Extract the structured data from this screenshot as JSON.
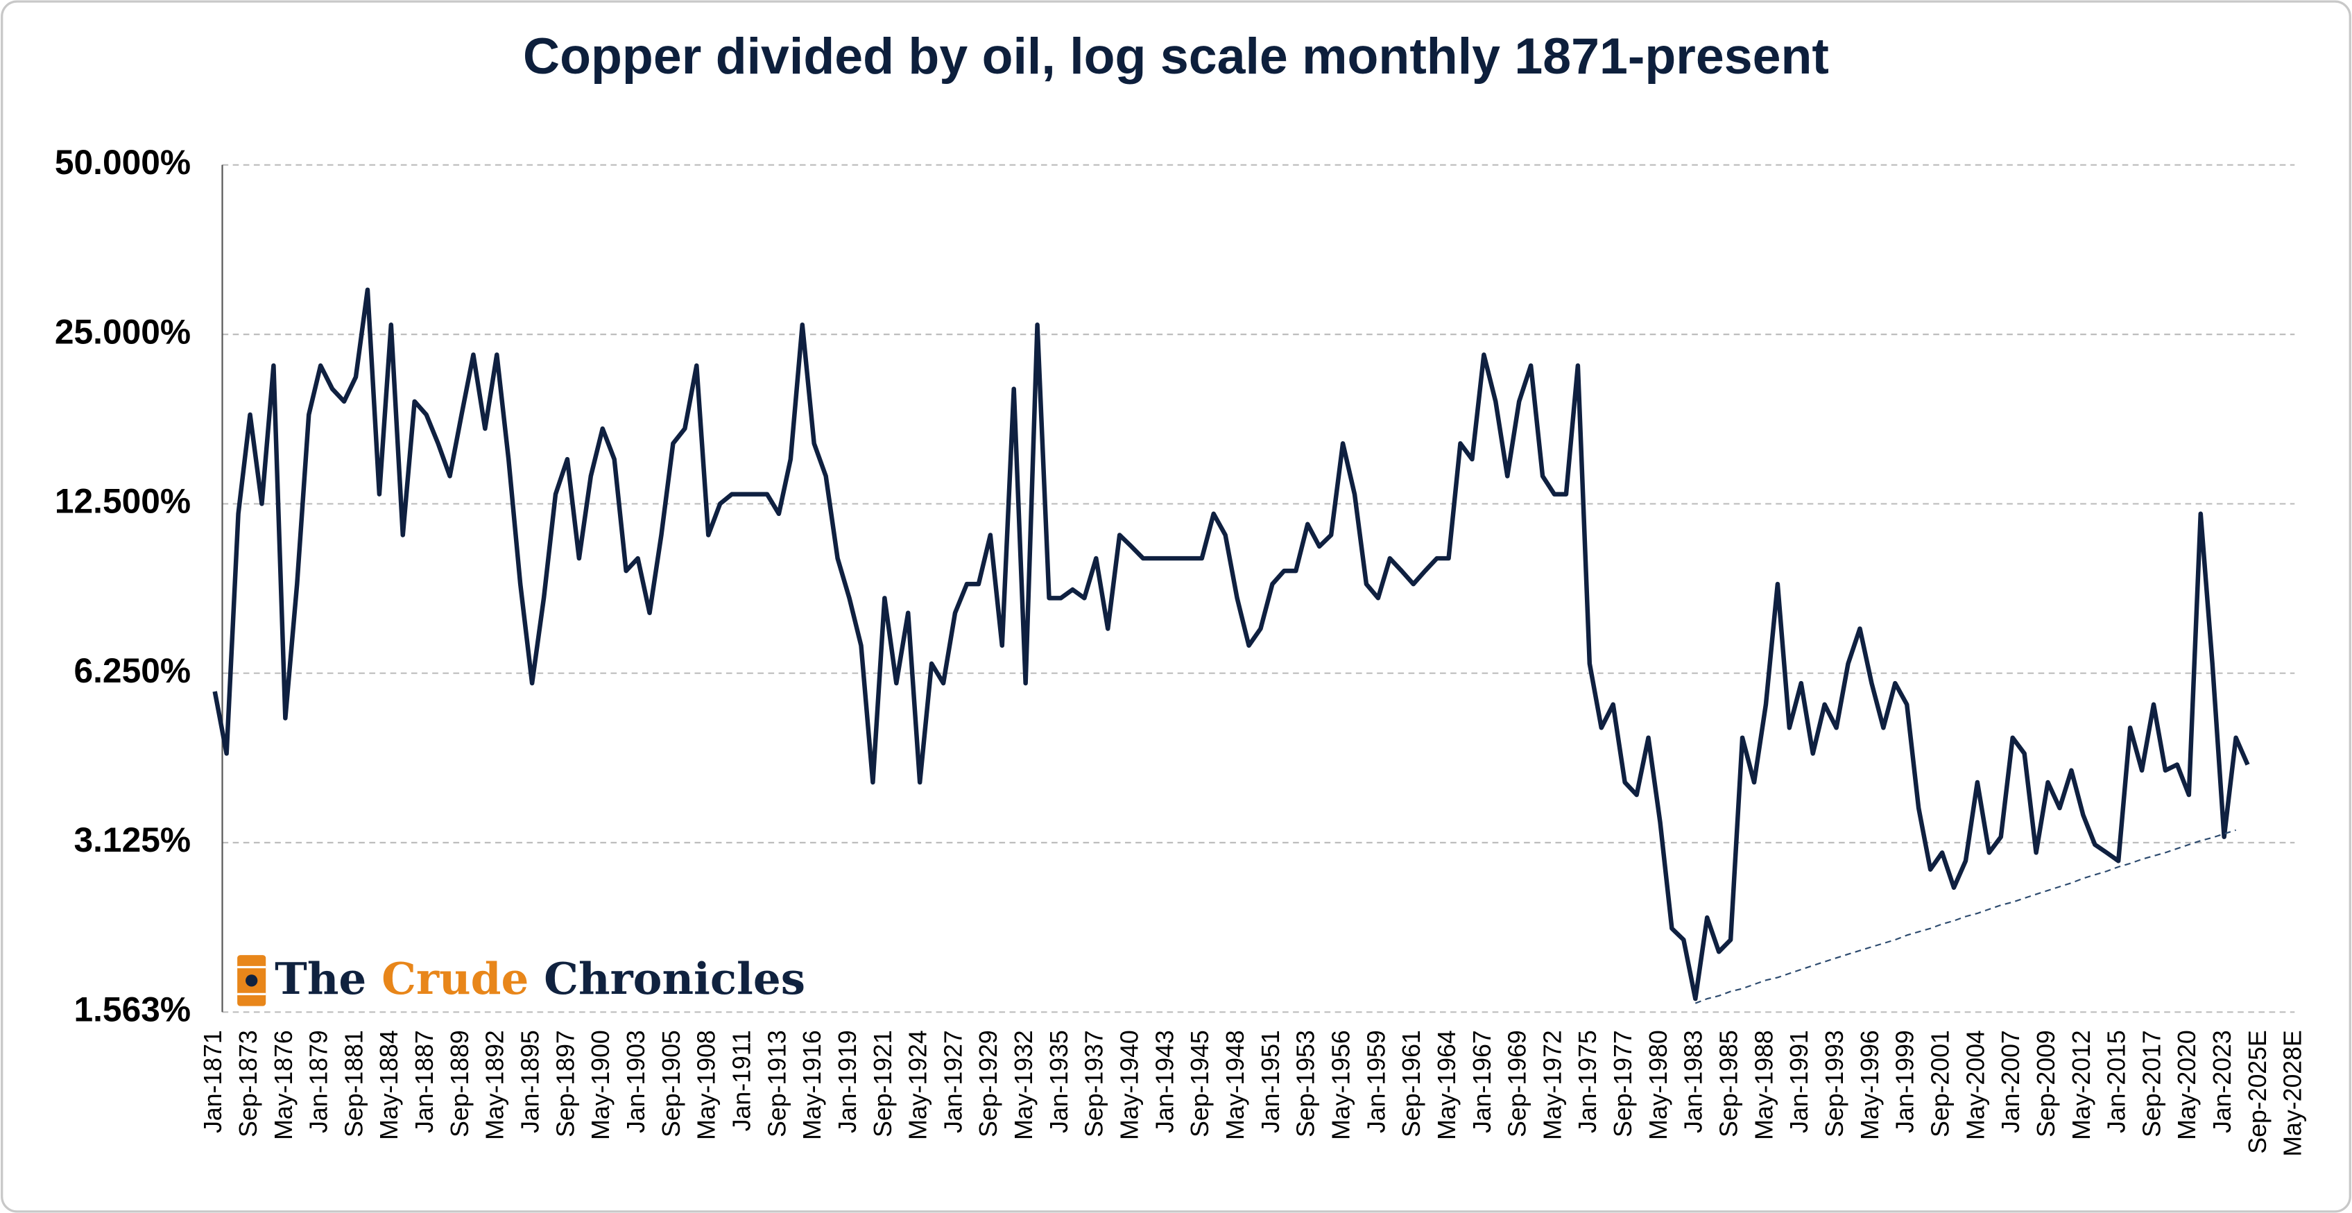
{
  "chart_data": {
    "type": "line",
    "title": "Copper divided by oil, log scale monthly 1871-present",
    "log_scale": true,
    "grid": true,
    "ylim": [
      1.5625,
      50
    ],
    "yticks": [
      {
        "value": 1.5625,
        "label": "1.563%"
      },
      {
        "value": 3.125,
        "label": "3.125%"
      },
      {
        "value": 6.25,
        "label": "6.250%"
      },
      {
        "value": 12.5,
        "label": "12.500%"
      },
      {
        "value": 25,
        "label": "25.000%"
      },
      {
        "value": 50,
        "label": "50.000%"
      }
    ],
    "categories": [
      "Jan-1871",
      null,
      null,
      "Sep-1873",
      null,
      null,
      "May-1876",
      null,
      null,
      "Jan-1879",
      null,
      null,
      "Sep-1881",
      null,
      null,
      "May-1884",
      null,
      null,
      "Jan-1887",
      null,
      null,
      "Sep-1889",
      null,
      null,
      "May-1892",
      null,
      null,
      "Jan-1895",
      null,
      null,
      "Sep-1897",
      null,
      null,
      "May-1900",
      null,
      null,
      "Jan-1903",
      null,
      null,
      "Sep-1905",
      null,
      null,
      "May-1908",
      null,
      null,
      "Jan-1911",
      null,
      null,
      "Sep-1913",
      null,
      null,
      "May-1916",
      null,
      null,
      "Jan-1919",
      null,
      null,
      "Sep-1921",
      null,
      null,
      "May-1924",
      null,
      null,
      "Jan-1927",
      null,
      null,
      "Sep-1929",
      null,
      null,
      "May-1932",
      null,
      null,
      "Jan-1935",
      null,
      null,
      "Sep-1937",
      null,
      null,
      "May-1940",
      null,
      null,
      "Jan-1943",
      null,
      null,
      "Sep-1945",
      null,
      null,
      "May-1948",
      null,
      null,
      "Jan-1951",
      null,
      null,
      "Sep-1953",
      null,
      null,
      "May-1956",
      null,
      null,
      "Jan-1959",
      null,
      null,
      "Sep-1961",
      null,
      null,
      "May-1964",
      null,
      null,
      "Jan-1967",
      null,
      null,
      "Sep-1969",
      null,
      null,
      "May-1972",
      null,
      null,
      "Jan-1975",
      null,
      null,
      "Sep-1977",
      null,
      null,
      "May-1980",
      null,
      null,
      "Jan-1983",
      null,
      null,
      "Sep-1985",
      null,
      null,
      "May-1988",
      null,
      null,
      "Jan-1991",
      null,
      null,
      "Sep-1993",
      null,
      null,
      "May-1996",
      null,
      null,
      "Jan-1999",
      null,
      null,
      "Sep-2001",
      null,
      null,
      "May-2004",
      null,
      null,
      "Jan-2007",
      null,
      null,
      "Sep-2009",
      null,
      null,
      "May-2012",
      null,
      null,
      "Jan-2015",
      null,
      null,
      "Sep-2017",
      null,
      null,
      "May-2020",
      null,
      null,
      "Jan-2023",
      null,
      null,
      "Sep-2025E",
      null,
      null,
      "May-2028E",
      null,
      null
    ],
    "series": [
      {
        "color": "#0f2040",
        "style": "solid",
        "values": [
          5.8,
          4.5,
          12,
          18,
          12.5,
          22,
          5.2,
          9,
          18,
          22,
          20,
          19,
          21,
          30,
          13,
          26,
          11,
          19,
          18,
          16,
          14,
          18,
          23,
          17,
          23,
          15,
          9,
          6,
          8.5,
          13,
          15,
          10,
          14,
          17,
          15,
          9.5,
          10,
          8,
          11,
          16,
          17,
          22,
          11,
          12.5,
          13,
          13,
          13,
          13,
          12,
          15,
          26,
          16,
          14,
          10,
          8.5,
          7,
          4.0,
          8.5,
          6,
          8,
          4.0,
          6.5,
          6,
          8,
          9,
          9,
          11,
          7,
          20,
          6,
          26,
          8.5,
          8.5,
          8.8,
          8.5,
          10,
          7.5,
          11,
          10.5,
          10,
          10,
          10,
          10,
          10,
          10,
          12,
          11,
          8.5,
          7,
          7.5,
          9,
          9.5,
          9.5,
          11.5,
          10.5,
          11,
          16,
          13,
          9,
          8.5,
          10,
          9.5,
          9,
          9.5,
          10,
          10,
          16,
          15,
          23,
          19,
          14,
          19,
          22,
          14,
          13,
          13,
          22,
          6.5,
          5,
          5.5,
          4.0,
          3.8,
          4.8,
          3.4,
          2.2,
          2.1,
          1.65,
          2.3,
          2.0,
          2.1,
          4.8,
          4.0,
          5.5,
          9,
          5,
          6,
          4.5,
          5.5,
          5,
          6.5,
          7.5,
          6,
          5,
          6,
          5.5,
          3.6,
          2.8,
          3.0,
          2.6,
          2.9,
          4.0,
          3.0,
          3.2,
          4.8,
          4.5,
          3.0,
          4.0,
          3.6,
          4.2,
          3.5,
          3.1,
          3.0,
          2.9,
          5.0,
          4.2,
          5.5,
          4.2,
          4.3,
          3.8,
          12,
          6.5,
          3.2,
          4.8,
          4.3,
          null,
          null,
          null,
          null,
          null,
          null
        ]
      },
      {
        "color": "#2c4a6e",
        "style": "dashed",
        "values": [
          null,
          null,
          null,
          null,
          null,
          null,
          null,
          null,
          null,
          null,
          null,
          null,
          null,
          null,
          null,
          null,
          null,
          null,
          null,
          null,
          null,
          null,
          null,
          null,
          null,
          null,
          null,
          null,
          null,
          null,
          null,
          null,
          null,
          null,
          null,
          null,
          null,
          null,
          null,
          null,
          null,
          null,
          null,
          null,
          null,
          null,
          null,
          null,
          null,
          null,
          null,
          null,
          null,
          null,
          null,
          null,
          null,
          null,
          null,
          null,
          null,
          null,
          null,
          null,
          null,
          null,
          null,
          null,
          null,
          null,
          null,
          null,
          null,
          null,
          null,
          null,
          null,
          null,
          null,
          null,
          null,
          null,
          null,
          null,
          null,
          null,
          null,
          null,
          null,
          null,
          null,
          null,
          null,
          null,
          null,
          null,
          null,
          null,
          null,
          null,
          null,
          null,
          null,
          null,
          null,
          null,
          null,
          null,
          null,
          null,
          null,
          null,
          null,
          null,
          null,
          null,
          null,
          null,
          null,
          null,
          null,
          null,
          null,
          null,
          null,
          null,
          1.62,
          1.65,
          1.67,
          1.7,
          1.72,
          1.75,
          1.78,
          1.8,
          1.83,
          1.86,
          1.89,
          1.92,
          1.95,
          1.98,
          2.01,
          2.04,
          2.07,
          2.1,
          2.14,
          2.17,
          2.2,
          2.24,
          2.27,
          2.31,
          2.34,
          2.38,
          2.42,
          2.45,
          2.49,
          2.53,
          2.57,
          2.61,
          2.65,
          2.7,
          2.74,
          2.78,
          2.83,
          2.87,
          2.92,
          2.96,
          3.0,
          3.05,
          3.1,
          3.15,
          3.19,
          3.24,
          3.29,
          null,
          null,
          null,
          null,
          null,
          null,
          null
        ]
      }
    ]
  },
  "logo": {
    "parts": [
      "The",
      "Crude",
      "Chronicles"
    ],
    "colors": [
      "#10223f",
      "#e8861a",
      "#10223f"
    ]
  }
}
